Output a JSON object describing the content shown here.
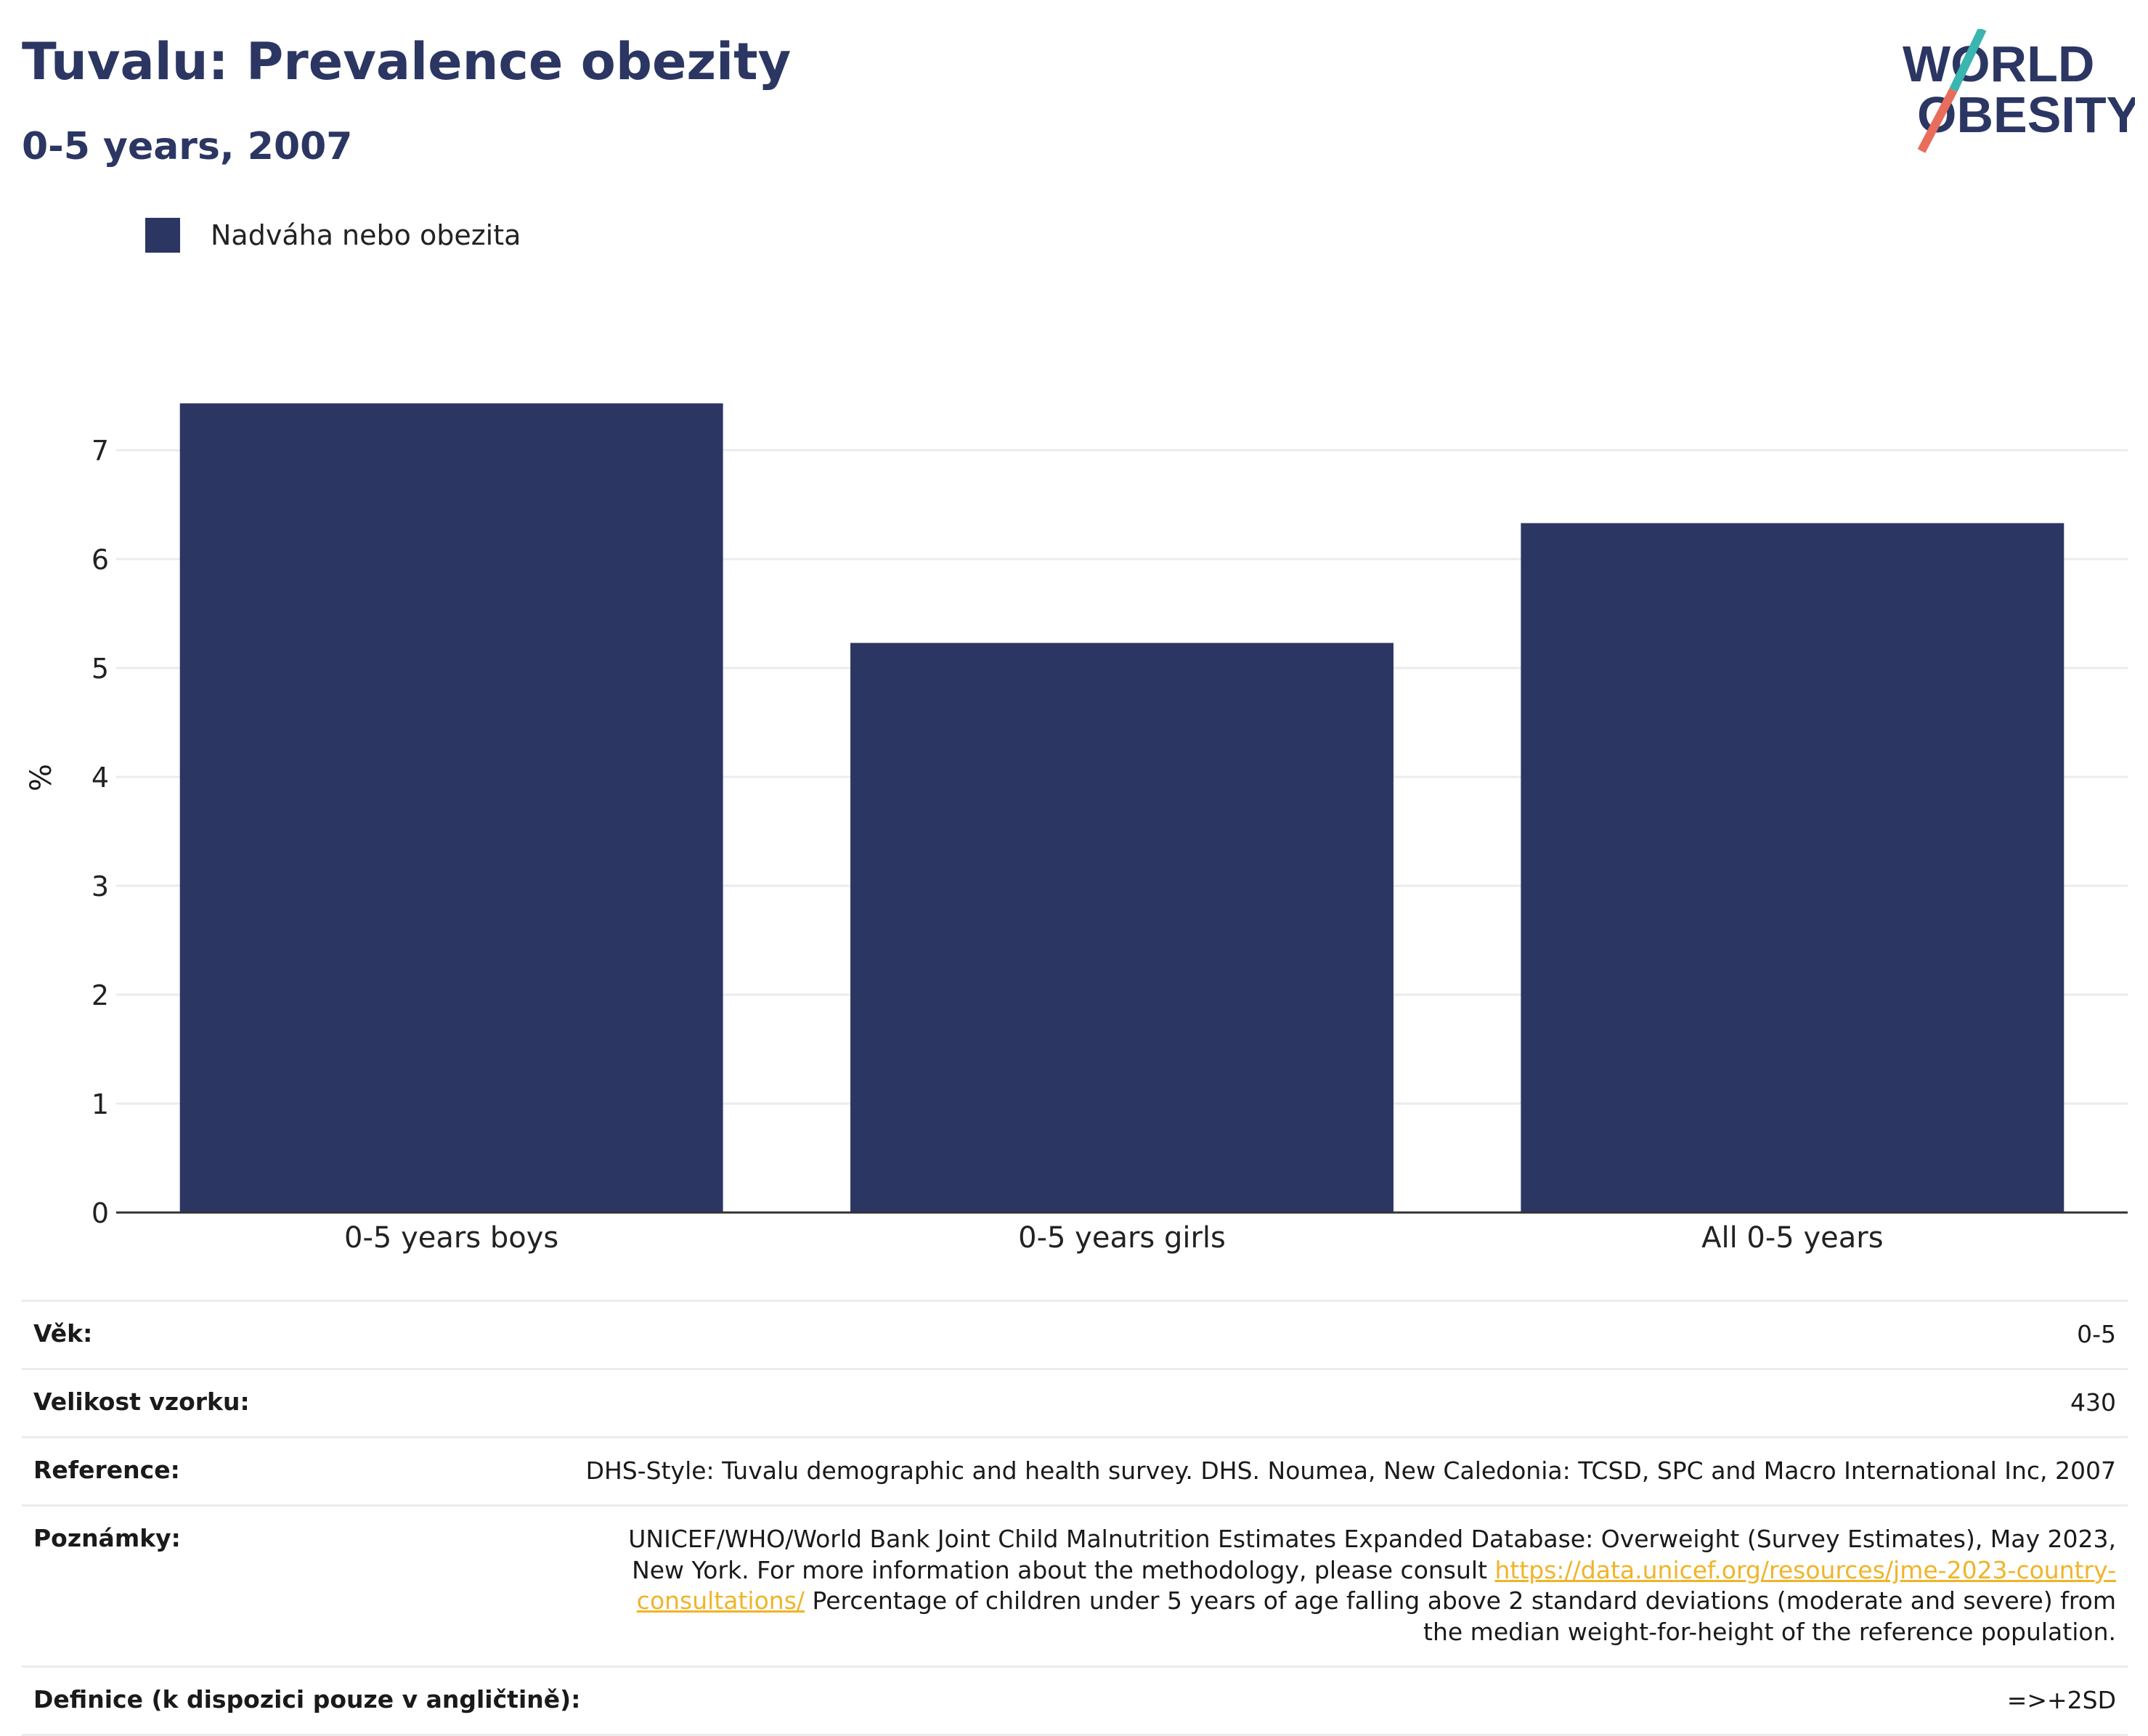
{
  "header": {
    "title": "Tuvalu: Prevalence obezity",
    "subtitle": "0-5 years, 2007"
  },
  "logo": {
    "line1": "WORLD",
    "line2": "OBESITY"
  },
  "colors": {
    "bar": "#2b3663",
    "title": "#2b3663",
    "link": "#f0b429",
    "logo_teal": "#3ab5b0",
    "logo_coral": "#e86d5b"
  },
  "chart_data": {
    "type": "bar",
    "categories": [
      "0-5 years boys",
      "0-5 years girls",
      "All 0-5 years"
    ],
    "series": [
      {
        "name": "Nadváha nebo obezita",
        "values": [
          7.43,
          5.23,
          6.33
        ]
      }
    ],
    "ylabel": "%",
    "ylim": [
      0,
      7.8
    ],
    "yticks": [
      0,
      1,
      2,
      3,
      4,
      5,
      6,
      7
    ],
    "grid": true,
    "legend": "top-left"
  },
  "info": {
    "age_key": "Věk:",
    "age_val": "0-5",
    "sample_key": "Velikost vzorku:",
    "sample_val": "430",
    "ref_key": "Reference:",
    "ref_val": "DHS-Style: Tuvalu demographic and health survey. DHS. Noumea, New Caledonia: TCSD, SPC and Macro International Inc, 2007",
    "notes_key": "Poznámky:",
    "notes_pre": "UNICEF/WHO/World Bank Joint Child Malnutrition Estimates Expanded Database: Overweight (Survey Estimates), May 2023, New York. For more information about the methodology, please consult ",
    "notes_link": "https://data.unicef.org/resources/jme-2023-country-consultations/",
    "notes_post": " Percentage of children under 5 years of age falling above 2 standard deviations (moderate and severe) from the median weight-for-height of the reference population.",
    "def_key": "Definice (k dispozici pouze v angličtině):",
    "def_val": "=>+2SD"
  }
}
